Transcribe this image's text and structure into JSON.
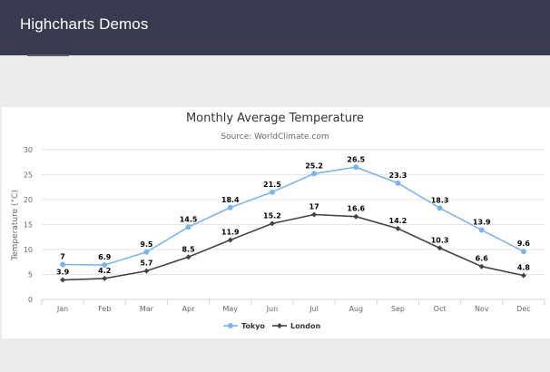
{
  "header": {
    "title": "Highcharts Demos"
  },
  "chart_data": {
    "type": "line",
    "title": "Monthly Average Temperature",
    "subtitle": "Source: WorldClimate.com",
    "xlabel": "",
    "ylabel": "Temperature (°C)",
    "categories": [
      "Jan",
      "Feb",
      "Mar",
      "Apr",
      "May",
      "Jun",
      "Jul",
      "Aug",
      "Sep",
      "Oct",
      "Nov",
      "Dec"
    ],
    "ylim": [
      0,
      30
    ],
    "yticks": [
      0,
      5,
      10,
      15,
      20,
      25,
      30
    ],
    "grid": true,
    "legend_position": "bottom-center",
    "data_labels": true,
    "series": [
      {
        "name": "Tokyo",
        "color": "#7cb5ec",
        "marker": "circle",
        "values": [
          7.0,
          6.9,
          9.5,
          14.5,
          18.4,
          21.5,
          25.2,
          26.5,
          23.3,
          18.3,
          13.9,
          9.6
        ],
        "labels": [
          "7",
          "6.9",
          "9.5",
          "14.5",
          "18.4",
          "21.5",
          "25.2",
          "26.5",
          "23.3",
          "18.3",
          "13.9",
          "9.6"
        ]
      },
      {
        "name": "London",
        "color": "#434348",
        "marker": "diamond",
        "values": [
          3.9,
          4.2,
          5.7,
          8.5,
          11.9,
          15.2,
          17.0,
          16.6,
          14.2,
          10.3,
          6.6,
          4.8
        ],
        "labels": [
          "3.9",
          "4.2",
          "5.7",
          "8.5",
          "11.9",
          "15.2",
          "17",
          "16.6",
          "14.2",
          "10.3",
          "6.6",
          "4.8"
        ]
      }
    ]
  }
}
